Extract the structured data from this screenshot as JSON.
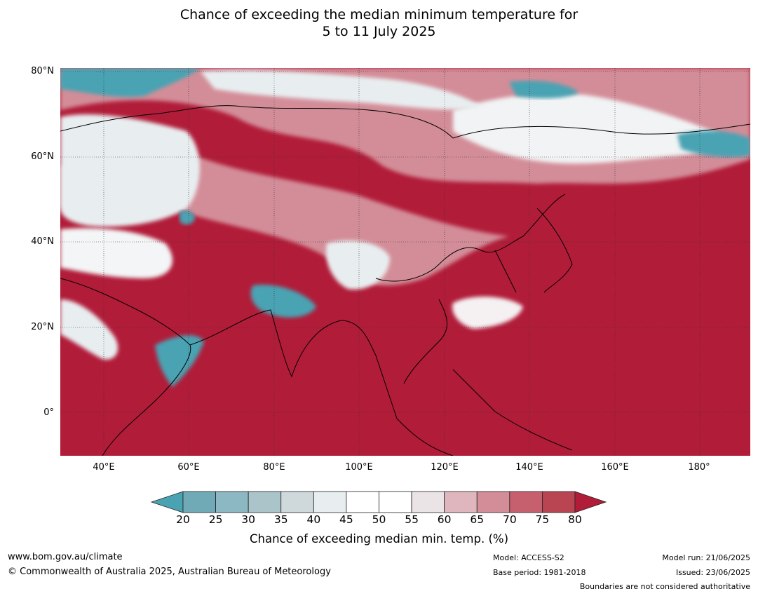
{
  "title_line1": "Chance of exceeding the median minimum temperature for",
  "title_line2": "5 to 11 July 2025",
  "lat_labels": [
    "80°N",
    "60°N",
    "40°N",
    "20°N",
    "0°"
  ],
  "lon_labels": [
    "40°E",
    "60°E",
    "80°E",
    "100°E",
    "120°E",
    "140°E",
    "160°E",
    "180°"
  ],
  "colorbar": {
    "ticks": [
      "20",
      "25",
      "30",
      "35",
      "40",
      "45",
      "50",
      "55",
      "60",
      "65",
      "70",
      "75",
      "80"
    ],
    "colors": [
      "#4aa3b3",
      "#6faab6",
      "#8bb8c2",
      "#aac4ca",
      "#cfd9dc",
      "#e8eef0",
      "#ffffff",
      "#ffffff",
      "#ebe4e6",
      "#dfb6bd",
      "#d38d98",
      "#c6606e",
      "#b94552",
      "#b11c39"
    ],
    "label": "Chance of exceeding median min. temp. (%)"
  },
  "colors": {
    "high": "#b11c39",
    "low": "#4aa3b3"
  },
  "footer": {
    "url": "www.bom.gov.au/climate",
    "copyright": "© Commonwealth of Australia 2025, Australian Bureau of Meteorology",
    "model": "Model: ACCESS-S2",
    "base_period": "Base period: 1981-2018",
    "model_run": "Model run: 21/06/2025",
    "issued": "Issued: 23/06/2025",
    "boundaries": "Boundaries are not considered authoritative"
  }
}
